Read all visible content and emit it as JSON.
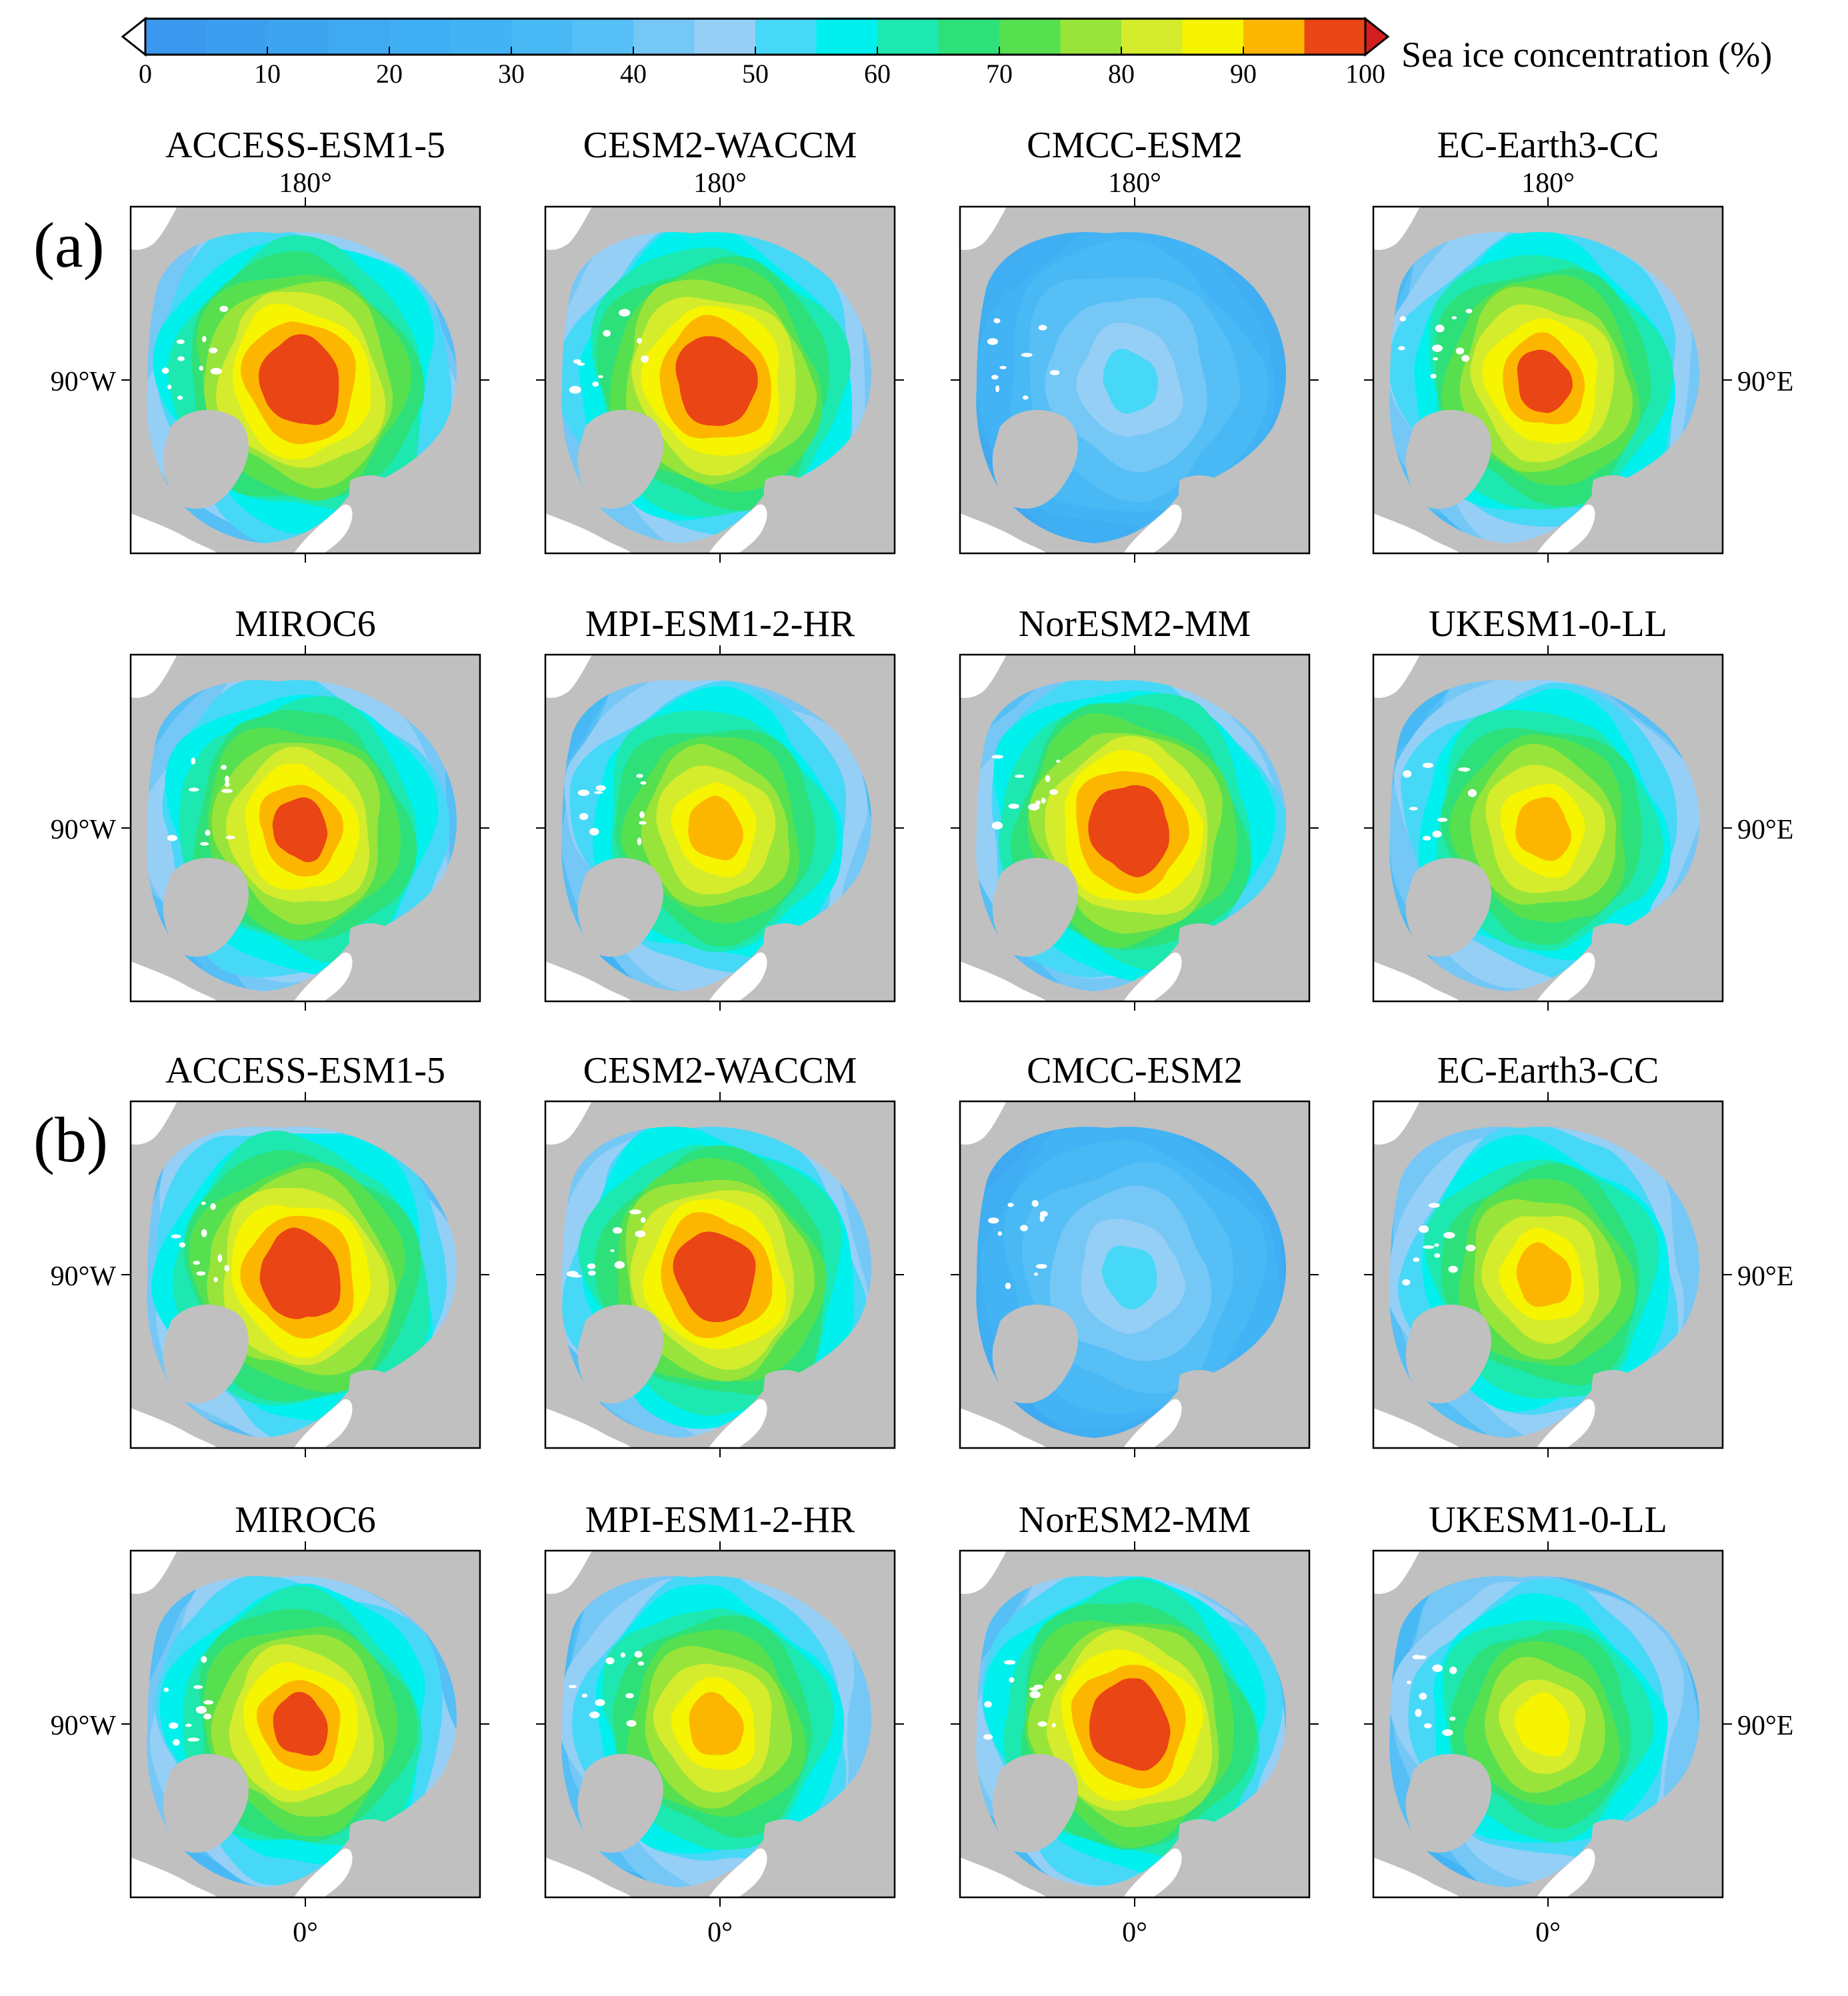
{
  "colorbar": {
    "label": "Sea ice concentration (%)",
    "ticks": [
      "0",
      "10",
      "20",
      "30",
      "40",
      "50",
      "60",
      "70",
      "80",
      "90",
      "100"
    ],
    "bounds": [
      0,
      5,
      10,
      15,
      20,
      25,
      30,
      35,
      40,
      45,
      50,
      55,
      60,
      65,
      70,
      75,
      80,
      85,
      90,
      95,
      100
    ],
    "colors": [
      "#3a98ee",
      "#3c9eef",
      "#3da4f0",
      "#3fa9f2",
      "#40aef3",
      "#42b3f4",
      "#48b9f5",
      "#55bff6",
      "#75c7f6",
      "#95cff6",
      "#48d8f7",
      "#00f0ee",
      "#1de8b0",
      "#2ee07a",
      "#56e050",
      "#99e43a",
      "#d4ec2c",
      "#f6f400",
      "#fdb600",
      "#ea4514"
    ],
    "under_color": "#ffffff",
    "over_color": "#d21e1e",
    "extend": "both"
  },
  "panel_labels": [
    "(a)",
    "(b)"
  ],
  "lon_labels": {
    "top": "180°",
    "bottom": "0°",
    "left": "90°W",
    "right": "90°E"
  },
  "colors": {
    "land": "#c0c0c0",
    "unfilled": "#ffffff"
  },
  "chart_data": {
    "type": "heatmap",
    "projection": "north polar stereographic",
    "variable": "Sea ice concentration (%)",
    "value_range": [
      0,
      100
    ],
    "groups": [
      {
        "label": "(a)",
        "panels": [
          {
            "title": "ACCESS-ESM1-5",
            "max_sic": 100,
            "core_sic": 92
          },
          {
            "title": "CESM2-WACCM",
            "max_sic": 100,
            "core_sic": 90
          },
          {
            "title": "CMCC-ESM2",
            "max_sic": 50,
            "core_sic": 47
          },
          {
            "title": "EC-Earth3-CC",
            "max_sic": 95,
            "core_sic": 90
          },
          {
            "title": "MIROC6",
            "max_sic": 95,
            "core_sic": 92
          },
          {
            "title": "MPI-ESM1-2-HR",
            "max_sic": 90,
            "core_sic": 85
          },
          {
            "title": "NorESM2-MM",
            "max_sic": 100,
            "core_sic": 97
          },
          {
            "title": "UKESM1-0-LL",
            "max_sic": 90,
            "core_sic": 85
          }
        ]
      },
      {
        "label": "(b)",
        "panels": [
          {
            "title": "ACCESS-ESM1-5",
            "max_sic": 100,
            "core_sic": 90
          },
          {
            "title": "CESM2-WACCM",
            "max_sic": 100,
            "core_sic": 90
          },
          {
            "title": "CMCC-ESM2",
            "max_sic": 50,
            "core_sic": 47
          },
          {
            "title": "EC-Earth3-CC",
            "max_sic": 90,
            "core_sic": 88
          },
          {
            "title": "MIROC6",
            "max_sic": 95,
            "core_sic": 92
          },
          {
            "title": "MPI-ESM1-2-HR",
            "max_sic": 90,
            "core_sic": 85
          },
          {
            "title": "NorESM2-MM",
            "max_sic": 100,
            "core_sic": 97
          },
          {
            "title": "UKESM1-0-LL",
            "max_sic": 85,
            "core_sic": 80
          }
        ]
      }
    ]
  }
}
